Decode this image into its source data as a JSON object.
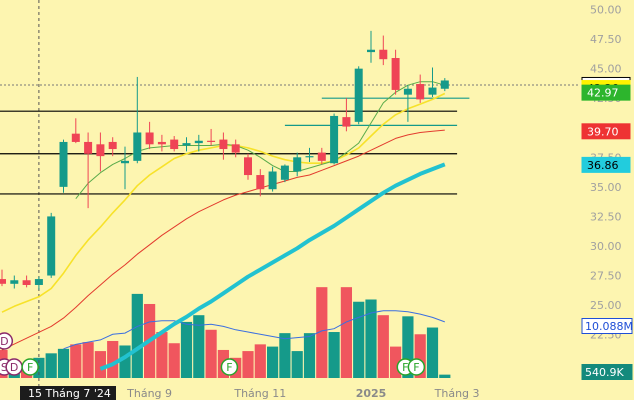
{
  "chart_data": {
    "type": "candlestick",
    "y_ticks": [
      "50.00",
      "47.50",
      "45.00",
      "42.50",
      "40.00",
      "37.50",
      "35.00",
      "32.50",
      "30.00",
      "27.50",
      "25.00",
      "22.50"
    ],
    "y_tick_values": [
      50,
      47.5,
      45,
      42.5,
      40,
      37.5,
      35,
      32.5,
      30,
      27.5,
      25,
      22.5
    ],
    "ylim": [
      21.2,
      50.3
    ],
    "x_labels": [
      {
        "label": "15 Tháng 7 '24",
        "bar": 3,
        "highlight": true
      },
      {
        "label": "Tháng 9",
        "bar": 12,
        "highlight": false
      },
      {
        "label": "Tháng 11",
        "bar": 21,
        "highlight": false
      },
      {
        "label": "2025",
        "bar": 30,
        "highlight": false,
        "bold": true
      },
      {
        "label": "Tháng 3",
        "bar": 37,
        "highlight": false
      }
    ],
    "current_price_line": 43.62,
    "candles": [
      {
        "o": 27.2,
        "h": 28.0,
        "l": 26.6,
        "c": 26.8
      },
      {
        "o": 26.8,
        "h": 27.5,
        "l": 26.4,
        "c": 27.1
      },
      {
        "o": 27.1,
        "h": 27.5,
        "l": 26.5,
        "c": 26.7
      },
      {
        "o": 26.7,
        "h": 27.4,
        "l": 26.3,
        "c": 27.2
      },
      {
        "o": 27.5,
        "h": 32.8,
        "l": 27.3,
        "c": 32.5
      },
      {
        "o": 35.0,
        "h": 39.0,
        "l": 34.5,
        "c": 38.8
      },
      {
        "o": 39.5,
        "h": 40.8,
        "l": 38.7,
        "c": 38.8
      },
      {
        "o": 38.8,
        "h": 39.6,
        "l": 33.2,
        "c": 37.8
      },
      {
        "o": 38.6,
        "h": 39.6,
        "l": 36.3,
        "c": 37.6
      },
      {
        "o": 38.8,
        "h": 39.2,
        "l": 37.6,
        "c": 38.2
      },
      {
        "o": 37.0,
        "h": 38.4,
        "l": 34.8,
        "c": 37.2
      },
      {
        "o": 37.2,
        "h": 44.3,
        "l": 37.0,
        "c": 39.6
      },
      {
        "o": 39.6,
        "h": 40.5,
        "l": 38.2,
        "c": 38.6
      },
      {
        "o": 38.8,
        "h": 39.4,
        "l": 38.0,
        "c": 38.6
      },
      {
        "o": 39.0,
        "h": 39.3,
        "l": 38.0,
        "c": 38.2
      },
      {
        "o": 38.5,
        "h": 39.2,
        "l": 38.0,
        "c": 38.7
      },
      {
        "o": 38.7,
        "h": 39.4,
        "l": 38.0,
        "c": 38.9
      },
      {
        "o": 38.9,
        "h": 39.9,
        "l": 38.5,
        "c": 38.8
      },
      {
        "o": 39.0,
        "h": 39.6,
        "l": 37.3,
        "c": 38.2
      },
      {
        "o": 38.6,
        "h": 39.0,
        "l": 37.5,
        "c": 37.9
      },
      {
        "o": 37.5,
        "h": 37.8,
        "l": 35.6,
        "c": 36.0
      },
      {
        "o": 36.0,
        "h": 36.5,
        "l": 34.2,
        "c": 34.8
      },
      {
        "o": 34.8,
        "h": 36.7,
        "l": 34.6,
        "c": 36.3
      },
      {
        "o": 35.6,
        "h": 36.9,
        "l": 35.4,
        "c": 36.8
      },
      {
        "o": 36.3,
        "h": 37.9,
        "l": 35.9,
        "c": 37.5
      },
      {
        "o": 37.5,
        "h": 38.3,
        "l": 37.1,
        "c": 37.6
      },
      {
        "o": 37.9,
        "h": 38.3,
        "l": 36.9,
        "c": 37.2
      },
      {
        "o": 37.0,
        "h": 41.2,
        "l": 36.9,
        "c": 41.0
      },
      {
        "o": 40.9,
        "h": 42.5,
        "l": 39.7,
        "c": 40.1
      },
      {
        "o": 40.5,
        "h": 45.2,
        "l": 40.3,
        "c": 45.0
      },
      {
        "o": 46.4,
        "h": 48.2,
        "l": 45.5,
        "c": 46.6
      },
      {
        "o": 46.6,
        "h": 47.8,
        "l": 45.3,
        "c": 45.8
      },
      {
        "o": 45.9,
        "h": 46.6,
        "l": 42.8,
        "c": 43.2
      },
      {
        "o": 42.8,
        "h": 43.6,
        "l": 40.5,
        "c": 43.3
      },
      {
        "o": 43.7,
        "h": 44.5,
        "l": 42.1,
        "c": 42.4
      },
      {
        "o": 42.8,
        "h": 45.1,
        "l": 42.6,
        "c": 43.4
      },
      {
        "o": 43.3,
        "h": 44.2,
        "l": 43.1,
        "c": 44.0
      }
    ],
    "ma_yellow": [
      24.4,
      24.9,
      25.3,
      25.7,
      26.4,
      27.7,
      29.2,
      30.5,
      31.6,
      32.8,
      33.9,
      35.1,
      36.0,
      36.7,
      37.4,
      37.8,
      38.1,
      38.3,
      38.5,
      38.5,
      38.3,
      38.0,
      37.6,
      37.3,
      37.1,
      37.0,
      37.0,
      37.2,
      37.7,
      38.3,
      39.3,
      40.3,
      41.1,
      41.6,
      42.0,
      42.4,
      42.9
    ],
    "ma_green": [
      null,
      null,
      null,
      null,
      null,
      null,
      34.0,
      35.3,
      36.2,
      36.9,
      37.4,
      38.0,
      38.3,
      38.4,
      38.5,
      38.5,
      38.5,
      38.5,
      38.6,
      38.5,
      38.1,
      37.5,
      36.8,
      36.3,
      36.3,
      36.6,
      36.9,
      37.2,
      37.9,
      38.7,
      40.4,
      42.1,
      43.0,
      43.6,
      43.9,
      43.9,
      43.6
    ],
    "ma_red": [
      21.2,
      21.7,
      22.2,
      22.7,
      23.2,
      23.9,
      24.8,
      25.8,
      26.7,
      27.6,
      28.4,
      29.3,
      30.1,
      30.9,
      31.6,
      32.3,
      32.9,
      33.4,
      33.9,
      34.3,
      34.6,
      34.9,
      35.2,
      35.5,
      35.8,
      36.0,
      36.4,
      36.8,
      37.2,
      37.6,
      38.1,
      38.6,
      39.1,
      39.4,
      39.6,
      39.7,
      39.8
    ],
    "ma_cyan": [
      null,
      null,
      null,
      null,
      null,
      null,
      null,
      null,
      19.6,
      20.0,
      20.6,
      21.3,
      22.0,
      22.7,
      23.4,
      24.0,
      24.7,
      25.3,
      26.0,
      26.7,
      27.4,
      28.0,
      28.6,
      29.2,
      29.8,
      30.5,
      31.1,
      31.7,
      32.4,
      33.1,
      33.8,
      34.5,
      35.1,
      35.6,
      36.1,
      36.5,
      36.9
    ],
    "horizontal_levels": [
      {
        "value": 41.4,
        "from_bar": -1,
        "to_bar": 37,
        "color": "#000000"
      },
      {
        "value": 37.8,
        "from_bar": -1,
        "to_bar": 37,
        "color": "#000000"
      },
      {
        "value": 34.4,
        "from_bar": -1,
        "to_bar": 37,
        "color": "#000000"
      },
      {
        "value": 42.5,
        "from_bar": 26,
        "to_bar": 38,
        "color": "#159a8a"
      },
      {
        "value": 40.2,
        "from_bar": 23,
        "to_bar": 37,
        "color": "#159a8a"
      }
    ],
    "vertical_marker_bar": 3,
    "volume_values": [
      2.5,
      1.5,
      1.2,
      1.8,
      2.2,
      2.6,
      3.0,
      3.2,
      2.4,
      3.3,
      2.9,
      7.5,
      6.6,
      4.1,
      3.1,
      5.0,
      5.6,
      4.3,
      2.5,
      1.8,
      2.4,
      3.0,
      2.8,
      4.0,
      2.4,
      4.0,
      8.1,
      4.1,
      8.1,
      6.8,
      7.0,
      5.6,
      2.8,
      5.5,
      3.9,
      4.5,
      0.3
    ],
    "volume_max": 10.7,
    "volume_ma": [
      null,
      null,
      null,
      null,
      null,
      2.6,
      3.0,
      3.2,
      3.4,
      3.9,
      4.0,
      4.6,
      5.0,
      5.1,
      5.1,
      4.8,
      4.7,
      4.8,
      4.6,
      4.3,
      4.1,
      3.9,
      3.7,
      3.5,
      3.6,
      3.7,
      4.2,
      4.4,
      5.0,
      5.4,
      5.8,
      6.0,
      6.0,
      5.9,
      5.7,
      5.4,
      5.0
    ],
    "event_markers": [
      {
        "label": "D",
        "bar": -0.3,
        "row": 0
      },
      {
        "label": "S",
        "bar": -0.3,
        "row": 1
      },
      {
        "label": "D",
        "bar": 0.5,
        "row": 1
      },
      {
        "label": "F",
        "bar": 1.8,
        "row": 1
      },
      {
        "label": "F",
        "bar": 18.0,
        "row": 1
      },
      {
        "label": "F",
        "bar": 32.3,
        "row": 1
      },
      {
        "label": "F",
        "bar": 33.2,
        "row": 1
      }
    ],
    "price_badges": [
      {
        "text": "43.62",
        "value": 43.62,
        "bg": "#ffffff",
        "fg": "#000000",
        "border": "#000000"
      },
      {
        "text": "43.36",
        "value": 43.36,
        "bg": "#fff200",
        "fg": "#000000",
        "border": "#fff200"
      },
      {
        "text": "42.97",
        "value": 42.97,
        "bg": "#2db52d",
        "fg": "#ffffff",
        "border": "#2db52d"
      },
      {
        "text": "39.70",
        "value": 39.7,
        "bg": "#ee3333",
        "fg": "#ffffff",
        "border": "#ee3333"
      },
      {
        "text": "36.86",
        "value": 36.86,
        "bg": "#22ccdd",
        "fg": "#000000",
        "border": "#22ccdd"
      }
    ],
    "volume_badges": [
      {
        "text": "10.088M",
        "bg": "#ffffff",
        "fg": "#1f4fd6",
        "border": "#1f4fd6"
      },
      {
        "text": "540.9K",
        "bg": "#148a7c",
        "fg": "#ffffff",
        "border": "#148a7c"
      }
    ],
    "colors": {
      "up": "#159a8a",
      "down": "#ef4455",
      "vol_up": "#159a8a",
      "vol_down": "#f0565e",
      "ma_yellow": "#f7e22a",
      "ma_green": "#5aab4a",
      "ma_red": "#e33b2e",
      "ma_cyan": "#22c2d0",
      "vol_ma": "#3b6fe0",
      "background": "#fdf5b0"
    }
  }
}
